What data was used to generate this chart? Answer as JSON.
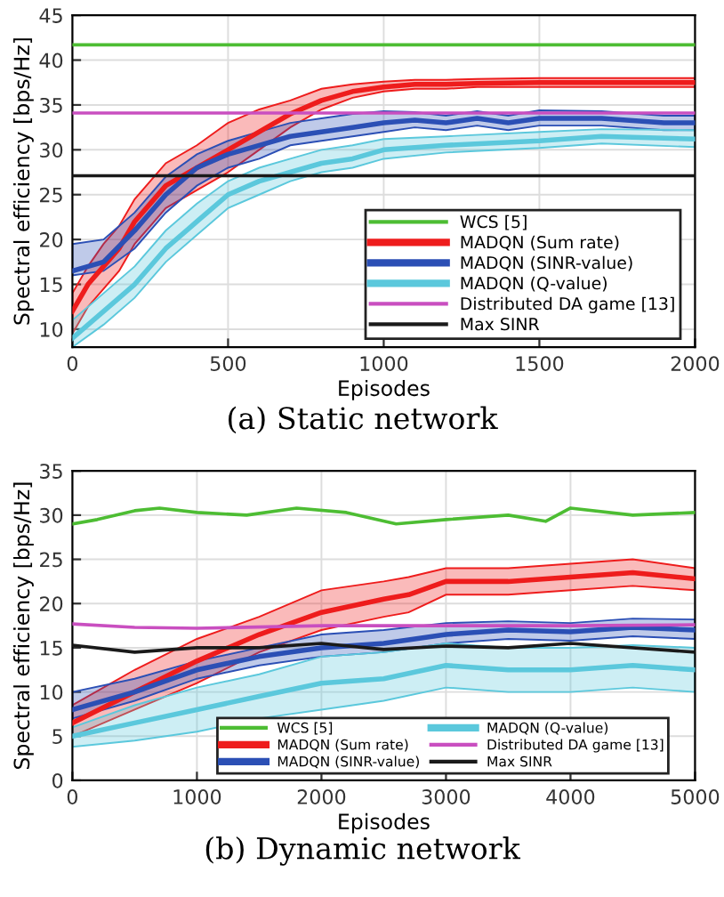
{
  "chart_data": [
    {
      "type": "line",
      "title": "(a) Static network",
      "xlabel": "Episodes",
      "ylabel": "Spectral efficiency [bps/Hz]",
      "xlim": [
        0,
        2000
      ],
      "xticks": [
        0,
        500,
        1000,
        1500,
        2000
      ],
      "ylim": [
        8,
        45
      ],
      "yticks": [
        10,
        15,
        20,
        25,
        30,
        35,
        40,
        45
      ],
      "grid": true,
      "legend": "lower right",
      "series": [
        {
          "name": "WCS [5]",
          "color": "#4dbd33",
          "x": [
            0,
            2000
          ],
          "values": [
            41.7,
            41.7
          ]
        },
        {
          "name": "MADQN (Sum rate)",
          "color": "#ee1c1c",
          "x": [
            0,
            50,
            100,
            150,
            200,
            250,
            300,
            400,
            500,
            600,
            700,
            800,
            900,
            1000,
            1100,
            1200,
            1300,
            1500,
            1700,
            2000
          ],
          "values": [
            12,
            15,
            17,
            19,
            22,
            24,
            26,
            28,
            30,
            32,
            34,
            35.5,
            36.5,
            37,
            37.3,
            37.3,
            37.4,
            37.5,
            37.5,
            37.5
          ],
          "lower": [
            9.5,
            12.5,
            14.5,
            16.5,
            19.5,
            21.5,
            23.5,
            25.5,
            27.5,
            30,
            32.5,
            34.5,
            35.8,
            36.5,
            36.8,
            36.8,
            37,
            37,
            37,
            37
          ],
          "upper": [
            14,
            17,
            19.5,
            21.5,
            24.5,
            26.5,
            28.5,
            30.5,
            33,
            34.5,
            35.5,
            36.8,
            37.3,
            37.6,
            37.8,
            37.8,
            37.9,
            38,
            38,
            38
          ]
        },
        {
          "name": "MADQN (SINR-value)",
          "color": "#2b4fb5",
          "x": [
            0,
            100,
            200,
            300,
            400,
            500,
            600,
            700,
            800,
            900,
            1000,
            1100,
            1200,
            1300,
            1400,
            1500,
            1700,
            1900,
            2000
          ],
          "values": [
            16.5,
            17.5,
            21,
            25,
            28,
            29.5,
            30.5,
            31.5,
            32,
            32.5,
            33,
            33.3,
            33,
            33.5,
            33,
            33.5,
            33.5,
            33,
            33
          ],
          "lower": [
            16,
            16.5,
            19,
            23,
            26,
            28,
            29,
            30.5,
            31,
            31.5,
            32,
            32.5,
            32.2,
            32.7,
            32.2,
            32.7,
            32.7,
            32.2,
            32.2
          ],
          "upper": [
            19.5,
            20,
            23,
            27,
            29.5,
            31,
            32,
            33,
            33.5,
            34,
            34.3,
            34.2,
            33.8,
            34.3,
            33.8,
            34.4,
            34.3,
            33.8,
            33.8
          ]
        },
        {
          "name": "MADQN (Q-value)",
          "color": "#5bc8dc",
          "x": [
            0,
            100,
            200,
            300,
            400,
            500,
            600,
            700,
            800,
            900,
            1000,
            1200,
            1500,
            1700,
            2000
          ],
          "values": [
            9,
            12,
            15,
            19,
            22,
            25,
            26.5,
            27.5,
            28.5,
            29,
            30,
            30.5,
            31,
            31.5,
            31.2
          ],
          "lower": [
            8,
            10.5,
            13.5,
            17.5,
            20.5,
            23.5,
            25,
            26.5,
            27.5,
            28,
            29,
            29.7,
            30.2,
            30.7,
            30.3
          ],
          "upper": [
            11,
            14,
            17,
            21,
            24,
            26.5,
            28,
            29,
            30,
            30.5,
            31.2,
            31.5,
            32,
            32.3,
            32.2
          ]
        },
        {
          "name": "Distributed DA game [13]",
          "color": "#c94fc0",
          "x": [
            0,
            2000
          ],
          "values": [
            34.1,
            34.1
          ]
        },
        {
          "name": "Max SINR",
          "color": "#1a1a1a",
          "x": [
            0,
            2000
          ],
          "values": [
            27.1,
            27.1
          ]
        }
      ]
    },
    {
      "type": "line",
      "title": "(b) Dynamic network",
      "xlabel": "Episodes",
      "ylabel": "Spectral efficiency [bps/Hz]",
      "xlim": [
        0,
        5000
      ],
      "xticks": [
        0,
        1000,
        2000,
        3000,
        4000,
        5000
      ],
      "ylim": [
        0,
        35
      ],
      "yticks": [
        0,
        5,
        10,
        15,
        20,
        25,
        30,
        35
      ],
      "grid": true,
      "legend": "bottom",
      "series": [
        {
          "name": "WCS [5]",
          "color": "#4dbd33",
          "x": [
            0,
            200,
            500,
            700,
            1000,
            1400,
            1800,
            2200,
            2600,
            3000,
            3500,
            3800,
            4000,
            4500,
            5000
          ],
          "values": [
            29,
            29.5,
            30.5,
            30.8,
            30.3,
            30,
            30.8,
            30.3,
            29,
            29.5,
            30,
            29.3,
            30.8,
            30,
            30.3
          ]
        },
        {
          "name": "MADQN (Sum rate)",
          "color": "#ee1c1c",
          "x": [
            0,
            500,
            1000,
            1500,
            2000,
            2500,
            2700,
            3000,
            3500,
            4000,
            4500,
            5000
          ],
          "values": [
            6.5,
            10,
            13.5,
            16.5,
            19,
            20.5,
            21,
            22.5,
            22.5,
            23,
            23.5,
            22.8
          ],
          "lower": [
            5,
            8,
            11,
            14.5,
            17,
            18.5,
            19,
            21,
            21,
            21.5,
            22,
            21.5
          ],
          "upper": [
            8.5,
            12.5,
            16,
            18.5,
            21.5,
            22.5,
            23,
            24,
            24,
            24.5,
            25,
            24
          ]
        },
        {
          "name": "MADQN (SINR-value)",
          "color": "#2b4fb5",
          "x": [
            0,
            500,
            1000,
            1500,
            2000,
            2500,
            3000,
            3500,
            4000,
            4500,
            5000
          ],
          "values": [
            8,
            10,
            12.5,
            14,
            15,
            15.5,
            16.5,
            17,
            16.8,
            17.3,
            17
          ],
          "lower": [
            7,
            9,
            11.5,
            13,
            14,
            14.5,
            15.5,
            16,
            15.8,
            16.3,
            16
          ],
          "upper": [
            10,
            11.5,
            13.5,
            15,
            16.5,
            17,
            17.8,
            18,
            17.8,
            18.3,
            18.2
          ]
        },
        {
          "name": "MADQN (Q-value)",
          "color": "#5bc8dc",
          "x": [
            0,
            500,
            1000,
            1500,
            2000,
            2500,
            3000,
            3500,
            4000,
            4500,
            5000
          ],
          "values": [
            5,
            6.5,
            8,
            9.5,
            11,
            11.5,
            13,
            12.5,
            12.5,
            13,
            12.5
          ],
          "lower": [
            3.8,
            4.5,
            5.5,
            7,
            8,
            9,
            10.5,
            10,
            10,
            10.5,
            10
          ],
          "upper": [
            6,
            8.5,
            10.5,
            12,
            14,
            14.5,
            15.5,
            15,
            15,
            15.3,
            15
          ]
        },
        {
          "name": "Distributed DA game [13]",
          "color": "#c94fc0",
          "x": [
            0,
            500,
            1000,
            2000,
            3000,
            4000,
            5000
          ],
          "values": [
            17.7,
            17.3,
            17.2,
            17.5,
            17.5,
            17.5,
            17.6
          ]
        },
        {
          "name": "Max SINR",
          "color": "#1a1a1a",
          "x": [
            0,
            500,
            1000,
            1500,
            2000,
            2500,
            3000,
            3500,
            4000,
            5000
          ],
          "values": [
            15.3,
            14.5,
            15,
            15,
            15.5,
            14.8,
            15.2,
            15,
            15.5,
            14.5
          ]
        }
      ]
    }
  ]
}
